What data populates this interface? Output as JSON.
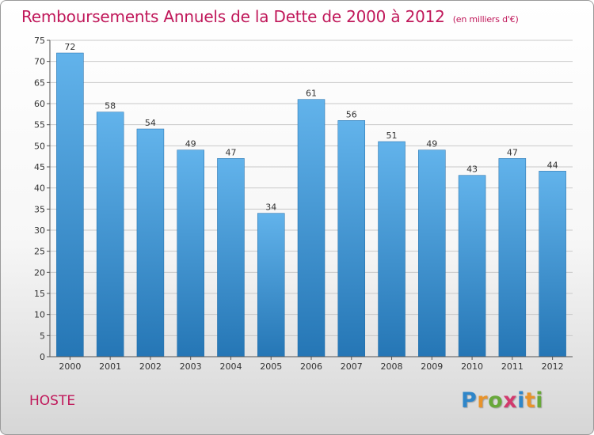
{
  "header": {
    "title": "Remboursements Annuels de la Dette de 2000 à 2012",
    "unit": "(en milliers d'€)"
  },
  "commune": "HOSTE",
  "logo": {
    "text": "Proxiti",
    "letters": [
      "P",
      "r",
      "o",
      "x",
      "i",
      "t",
      "i"
    ],
    "letter_colors": [
      "#2f86c9",
      "#e8932b",
      "#68a83a",
      "#d23a6d",
      "#2f86c9",
      "#e8932b",
      "#68a83a"
    ]
  },
  "colors": {
    "title": "#c0185a",
    "bar_top": "#62b3eb",
    "bar_bottom": "#2576b5",
    "grid": "#c9c9c9",
    "axis": "#555555"
  },
  "chart_data": {
    "type": "bar",
    "categories": [
      "2000",
      "2001",
      "2002",
      "2003",
      "2004",
      "2005",
      "2006",
      "2007",
      "2008",
      "2009",
      "2010",
      "2011",
      "2012"
    ],
    "values": [
      72,
      58,
      54,
      49,
      47,
      34,
      61,
      56,
      51,
      49,
      43,
      47,
      44
    ],
    "ylim": [
      0,
      75
    ],
    "yticks": [
      0,
      5,
      10,
      15,
      20,
      25,
      30,
      35,
      40,
      45,
      50,
      55,
      60,
      65,
      70,
      75
    ],
    "grid": true,
    "data_labels": true
  }
}
